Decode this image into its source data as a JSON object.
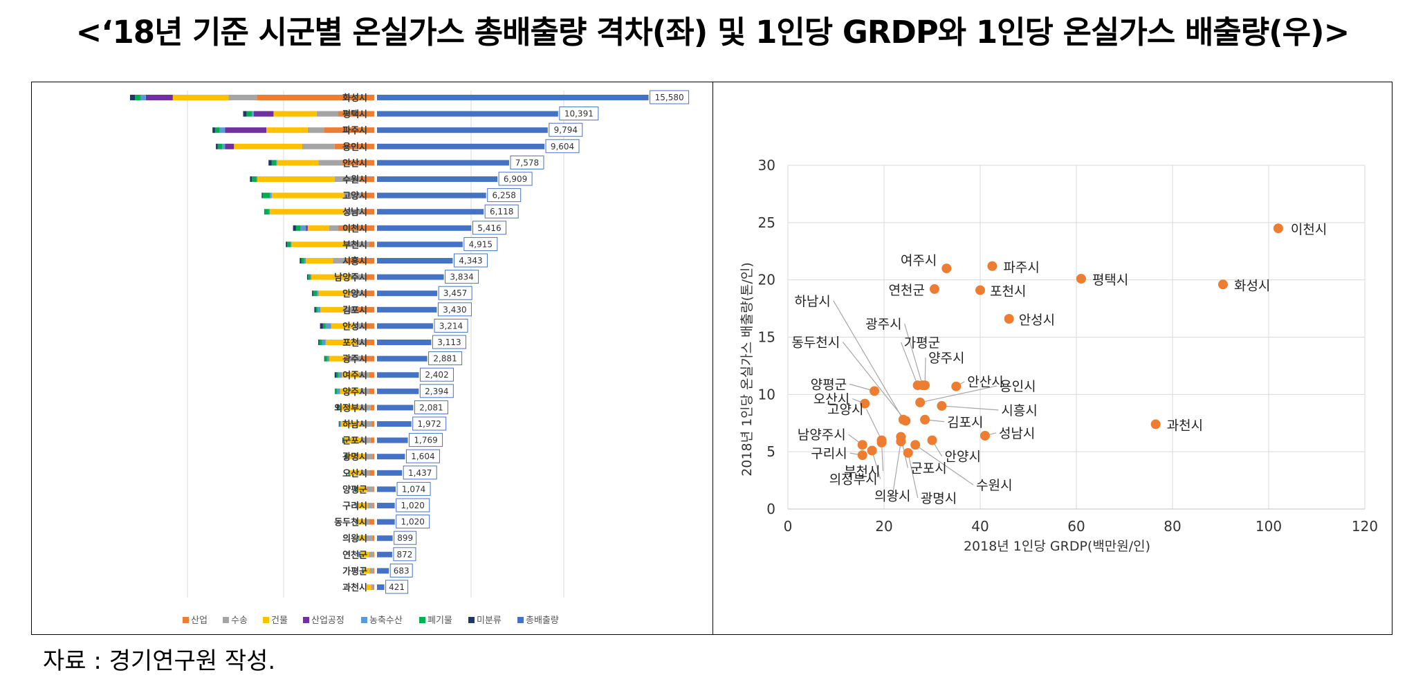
{
  "title": "<‘18년 기준 시군별 온실가스 총배출량 격차(좌) 및 1인당 GRDP와 1인당 온실가스 배출량(우)>",
  "source": "자료 : 경기연구원 작성.",
  "colors": {
    "산업": "#ED7D31",
    "수송": "#A5A5A5",
    "건물": "#FFC000",
    "산업공정": "#7030A0",
    "농축수산": "#5B9BD5",
    "폐기물": "#00B050",
    "미분류": "#1F3864",
    "총배출량": "#4472C4",
    "scatter": "#ED7D31"
  },
  "chart_data": [
    {
      "type": "bar",
      "orientation": "horizontal",
      "layout": "diverging",
      "title": "",
      "legend_position": "bottom",
      "legend": [
        "산업",
        "수송",
        "건물",
        "산업공정",
        "농축수산",
        "폐기물",
        "미분류",
        "총배출량"
      ],
      "categories": [
        "화성시",
        "평택시",
        "파주시",
        "용인시",
        "안산시",
        "수원시",
        "고양시",
        "성남시",
        "이천시",
        "부천시",
        "시흥시",
        "남양주시",
        "안양시",
        "김포시",
        "안성시",
        "포천시",
        "광주시",
        "여주시",
        "양주시",
        "의정부시",
        "하남시",
        "군포시",
        "광명시",
        "오산시",
        "양평군",
        "구리시",
        "동두천시",
        "의왕시",
        "연천군",
        "가평군",
        "과천시"
      ],
      "total_labels": [
        "15,580",
        "10,391",
        "9,794",
        "9,604",
        "7,578",
        "6,909",
        "6,258",
        "6,118",
        "5,416",
        "4,915",
        "4,343",
        "3,834",
        "3,457",
        "3,430",
        "3,214",
        "3,113",
        "2,881",
        "2,402",
        "2,394",
        "2,081",
        "1,972",
        "1,769",
        "1,604",
        "1,437",
        "1,074",
        "1,020",
        "1,020",
        "899",
        "872",
        "683",
        "421"
      ],
      "total_values": [
        15580,
        10391,
        9794,
        9604,
        7578,
        6909,
        6258,
        6118,
        5416,
        4915,
        4343,
        3834,
        3457,
        3430,
        3214,
        3113,
        2881,
        2402,
        2394,
        2081,
        1972,
        1769,
        1604,
        1437,
        1074,
        1020,
        1020,
        899,
        872,
        683,
        421
      ],
      "stacked_series": [
        {
          "name": "산업",
          "values": [
            6500,
            2000,
            2800,
            2200,
            1800,
            800,
            700,
            600,
            2000,
            300,
            1600,
            500,
            600,
            1000,
            600,
            500,
            700,
            300,
            300,
            200,
            150,
            200,
            100,
            250,
            50,
            50,
            300,
            100,
            50,
            50,
            20
          ]
        },
        {
          "name": "수송",
          "values": [
            1600,
            1200,
            900,
            1800,
            1300,
            1400,
            1000,
            1000,
            500,
            1200,
            700,
            800,
            700,
            700,
            500,
            500,
            700,
            550,
            500,
            600,
            600,
            500,
            400,
            400,
            350,
            300,
            250,
            350,
            250,
            200,
            150
          ]
        },
        {
          "name": "건물",
          "values": [
            3100,
            2400,
            2300,
            3800,
            2300,
            4300,
            4000,
            4200,
            1200,
            3100,
            1500,
            2200,
            1800,
            1300,
            1300,
            1700,
            1100,
            950,
            1100,
            1100,
            1100,
            950,
            1000,
            700,
            550,
            600,
            350,
            400,
            450,
            350,
            250
          ]
        },
        {
          "name": "산업공정",
          "values": [
            1500,
            1100,
            2300,
            500,
            0,
            0,
            0,
            0,
            100,
            0,
            0,
            0,
            0,
            0,
            0,
            0,
            0,
            0,
            0,
            0,
            0,
            0,
            0,
            0,
            0,
            0,
            0,
            0,
            0,
            0,
            0
          ]
        },
        {
          "name": "농축수산",
          "values": [
            300,
            100,
            300,
            150,
            50,
            50,
            100,
            50,
            300,
            40,
            100,
            60,
            90,
            150,
            300,
            200,
            100,
            200,
            160,
            40,
            40,
            20,
            20,
            30,
            60,
            30,
            40,
            10,
            70,
            40,
            0
          ]
        },
        {
          "name": "폐기물",
          "values": [
            300,
            300,
            250,
            250,
            250,
            250,
            400,
            250,
            250,
            200,
            150,
            120,
            200,
            100,
            150,
            150,
            140,
            100,
            120,
            80,
            50,
            50,
            40,
            40,
            40,
            20,
            50,
            20,
            30,
            20,
            1
          ]
        },
        {
          "name": "미분류",
          "values": [
            280,
            190,
            144,
            104,
            178,
            109,
            58,
            18,
            166,
            75,
            93,
            54,
            67,
            80,
            164,
            63,
            41,
            102,
            14,
            61,
            32,
            49,
            44,
            17,
            24,
            20,
            30,
            19,
            22,
            23,
            0
          ]
        }
      ]
    },
    {
      "type": "scatter",
      "title": "",
      "xlabel": "2018년 1인당 GRDP(백만원/인)",
      "ylabel": "2018년 1인당 온실가스 배출량(톤/인)",
      "xlim": [
        0,
        120
      ],
      "ylim": [
        0,
        30
      ],
      "xticks": [
        0,
        20,
        40,
        60,
        80,
        100,
        120
      ],
      "yticks": [
        0,
        5,
        10,
        15,
        20,
        25,
        30
      ],
      "grid": true,
      "points": [
        {
          "label": "이천시",
          "x": 102,
          "y": 24.5
        },
        {
          "label": "여주시",
          "x": 33,
          "y": 21.0
        },
        {
          "label": "파주시",
          "x": 42.5,
          "y": 21.2
        },
        {
          "label": "평택시",
          "x": 61,
          "y": 20.1
        },
        {
          "label": "화성시",
          "x": 90.5,
          "y": 19.6
        },
        {
          "label": "연천군",
          "x": 30.5,
          "y": 19.2
        },
        {
          "label": "포천시",
          "x": 40,
          "y": 19.1
        },
        {
          "label": "안성시",
          "x": 46,
          "y": 16.6
        },
        {
          "label": "하남시",
          "x": 24,
          "y": 7.8
        },
        {
          "label": "가평군",
          "x": 27,
          "y": 10.8
        },
        {
          "label": "양주시",
          "x": 28.5,
          "y": 10.8
        },
        {
          "label": "동두천시",
          "x": 24.5,
          "y": 7.7
        },
        {
          "label": "광주시",
          "x": 28,
          "y": 10.8
        },
        {
          "label": "안산시",
          "x": 35,
          "y": 10.7
        },
        {
          "label": "용인시",
          "x": 27.5,
          "y": 9.3
        },
        {
          "label": "양평군",
          "x": 18,
          "y": 10.3
        },
        {
          "label": "오산시",
          "x": 16,
          "y": 9.2
        },
        {
          "label": "시흥시",
          "x": 32,
          "y": 9.0
        },
        {
          "label": "김포시",
          "x": 28.5,
          "y": 7.8
        },
        {
          "label": "고양시",
          "x": 19.5,
          "y": 6.0
        },
        {
          "label": "과천시",
          "x": 76.5,
          "y": 7.4
        },
        {
          "label": "성남시",
          "x": 41,
          "y": 6.4
        },
        {
          "label": "남양주시",
          "x": 15.5,
          "y": 5.6
        },
        {
          "label": "구리시",
          "x": 15.5,
          "y": 4.7
        },
        {
          "label": "안양시",
          "x": 30,
          "y": 6.0
        },
        {
          "label": "수원시",
          "x": 26.5,
          "y": 5.6
        },
        {
          "label": "군포시",
          "x": 23.5,
          "y": 6.3
        },
        {
          "label": "의정부시",
          "x": 17.5,
          "y": 5.1
        },
        {
          "label": "부천시",
          "x": 19.5,
          "y": 5.8
        },
        {
          "label": "의왕시",
          "x": 23.5,
          "y": 5.9
        },
        {
          "label": "광명시",
          "x": 25,
          "y": 4.9
        }
      ]
    }
  ]
}
